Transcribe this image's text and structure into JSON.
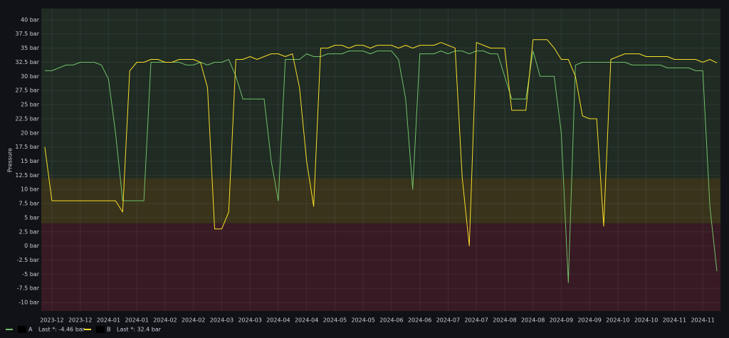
{
  "chart_data": {
    "type": "line",
    "ylabel": "Pressure",
    "ylim": [
      -11.5,
      42
    ],
    "yticks": [
      {
        "value": -10,
        "label": "-10 bar"
      },
      {
        "value": -7.5,
        "label": "-7.5 bar"
      },
      {
        "value": -5,
        "label": "-5 bar"
      },
      {
        "value": -2.5,
        "label": "-2.5 bar"
      },
      {
        "value": 0,
        "label": "0 bar"
      },
      {
        "value": 2.5,
        "label": "2.5 bar"
      },
      {
        "value": 5,
        "label": "5 bar"
      },
      {
        "value": 7.5,
        "label": "7.5 bar"
      },
      {
        "value": 10,
        "label": "10 bar"
      },
      {
        "value": 12.5,
        "label": "12.5 bar"
      },
      {
        "value": 15,
        "label": "15 bar"
      },
      {
        "value": 17.5,
        "label": "17.5 bar"
      },
      {
        "value": 20,
        "label": "20 bar"
      },
      {
        "value": 22.5,
        "label": "22.5 bar"
      },
      {
        "value": 25,
        "label": "25 bar"
      },
      {
        "value": 27.5,
        "label": "27.5 bar"
      },
      {
        "value": 30,
        "label": "30 bar"
      },
      {
        "value": 32.5,
        "label": "32.5 bar"
      },
      {
        "value": 35,
        "label": "35 bar"
      },
      {
        "value": 37.5,
        "label": "37.5 bar"
      },
      {
        "value": 40,
        "label": "40 bar"
      }
    ],
    "grid": true,
    "thresholds": [
      {
        "value": 4,
        "color": "rgba(242,73,92,0.17)"
      },
      {
        "value": 12,
        "color": "rgba(250,222,42,0.17)"
      },
      {
        "value": 42,
        "color": "rgba(115,191,105,0.15)"
      }
    ],
    "categories": [
      null,
      "2023-12",
      null,
      null,
      null,
      "2023-12",
      null,
      null,
      null,
      "2024-01",
      null,
      null,
      null,
      "2024-01",
      null,
      null,
      null,
      "2024-02",
      null,
      null,
      null,
      "2024-02",
      null,
      null,
      null,
      "2024-03",
      null,
      null,
      null,
      "2024-03",
      null,
      null,
      null,
      "2024-04",
      null,
      null,
      null,
      "2024-04",
      null,
      null,
      null,
      "2024-05",
      null,
      null,
      null,
      "2024-05",
      null,
      null,
      null,
      "2024-06",
      null,
      null,
      null,
      "2024-06",
      null,
      null,
      null,
      "2024-07",
      null,
      null,
      null,
      "2024-07",
      null,
      null,
      null,
      "2024-08",
      null,
      null,
      null,
      "2024-08",
      null,
      null,
      null,
      "2024-09",
      null,
      null,
      null,
      "2024-09",
      null,
      null,
      null,
      "2024-10",
      null,
      null,
      null,
      "2024-10",
      null,
      null,
      null,
      "2024-11",
      null,
      null,
      null,
      "2024-11",
      null,
      null
    ],
    "series": [
      {
        "name": "A",
        "color": "#73bf69",
        "legend_label": "Last *: -4.46 bar",
        "values": [
          31,
          31,
          31.5,
          32,
          32,
          32.5,
          32.5,
          32.5,
          32,
          29.5,
          20,
          8,
          8,
          8,
          8,
          32.5,
          32.5,
          32.5,
          32.5,
          32.5,
          32,
          32,
          32.5,
          32,
          32.5,
          32.5,
          33,
          30,
          26,
          26,
          26,
          26,
          15,
          8,
          33,
          33,
          33,
          34,
          33.5,
          33.5,
          34,
          34,
          34,
          34.5,
          34.5,
          34.5,
          34,
          34.5,
          34.5,
          34.5,
          33,
          26,
          10,
          34,
          34,
          34,
          34.5,
          34,
          34.5,
          34.5,
          34,
          34.5,
          34.5,
          34,
          34,
          30,
          26,
          26,
          26,
          34.5,
          30,
          30,
          30,
          20,
          -6.5,
          32,
          32.5,
          32.5,
          32.5,
          32.5,
          32.5,
          32.5,
          32.5,
          32,
          32,
          32,
          32,
          32,
          31.5,
          31.5,
          31.5,
          31.5,
          31,
          31,
          7,
          -4.46
        ]
      },
      {
        "name": "B",
        "color": "#fade2a",
        "legend_label": "Last *: 32.4 bar",
        "values": [
          17.5,
          8,
          8,
          8,
          8,
          8,
          8,
          8,
          8,
          8,
          8,
          6,
          31,
          32.5,
          32.5,
          33,
          33,
          32.5,
          32.5,
          33,
          33,
          33,
          32.5,
          28,
          3,
          3,
          6,
          33,
          33,
          33.5,
          33,
          33.5,
          34,
          34,
          33.5,
          34,
          28,
          15,
          7,
          35,
          35,
          35.5,
          35.5,
          35,
          35.5,
          35.5,
          35,
          35.5,
          35.5,
          35.5,
          35,
          35.5,
          35,
          35.5,
          35.5,
          35.5,
          36,
          35.5,
          35,
          12,
          0,
          36,
          35.5,
          35,
          35,
          35,
          24,
          24,
          24,
          36.5,
          36.5,
          36.5,
          35,
          33,
          33,
          30,
          23,
          22.5,
          22.5,
          3.5,
          33,
          33.5,
          34,
          34,
          34,
          33.5,
          33.5,
          33.5,
          33.5,
          33,
          33,
          33,
          33,
          32.5,
          33,
          32.4
        ]
      }
    ]
  }
}
